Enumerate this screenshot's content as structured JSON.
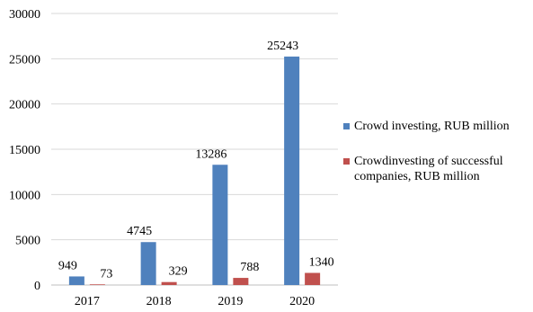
{
  "chart_data": {
    "type": "bar",
    "title": "",
    "xlabel": "",
    "ylabel": "",
    "categories": [
      "2017",
      "2018",
      "2019",
      "2020"
    ],
    "ylim": [
      0,
      30000
    ],
    "yticks": [
      0,
      5000,
      10000,
      15000,
      20000,
      25000,
      30000
    ],
    "grid": true,
    "legend_position": "right",
    "series": [
      {
        "name": "Crowd investing, RUB million",
        "color": "#4f81bd",
        "values": [
          949,
          4745,
          13286,
          25243
        ]
      },
      {
        "name": "Crowdinvesting of successful companies, RUB million",
        "color": "#c0504d",
        "values": [
          73,
          329,
          788,
          1340
        ]
      }
    ]
  }
}
